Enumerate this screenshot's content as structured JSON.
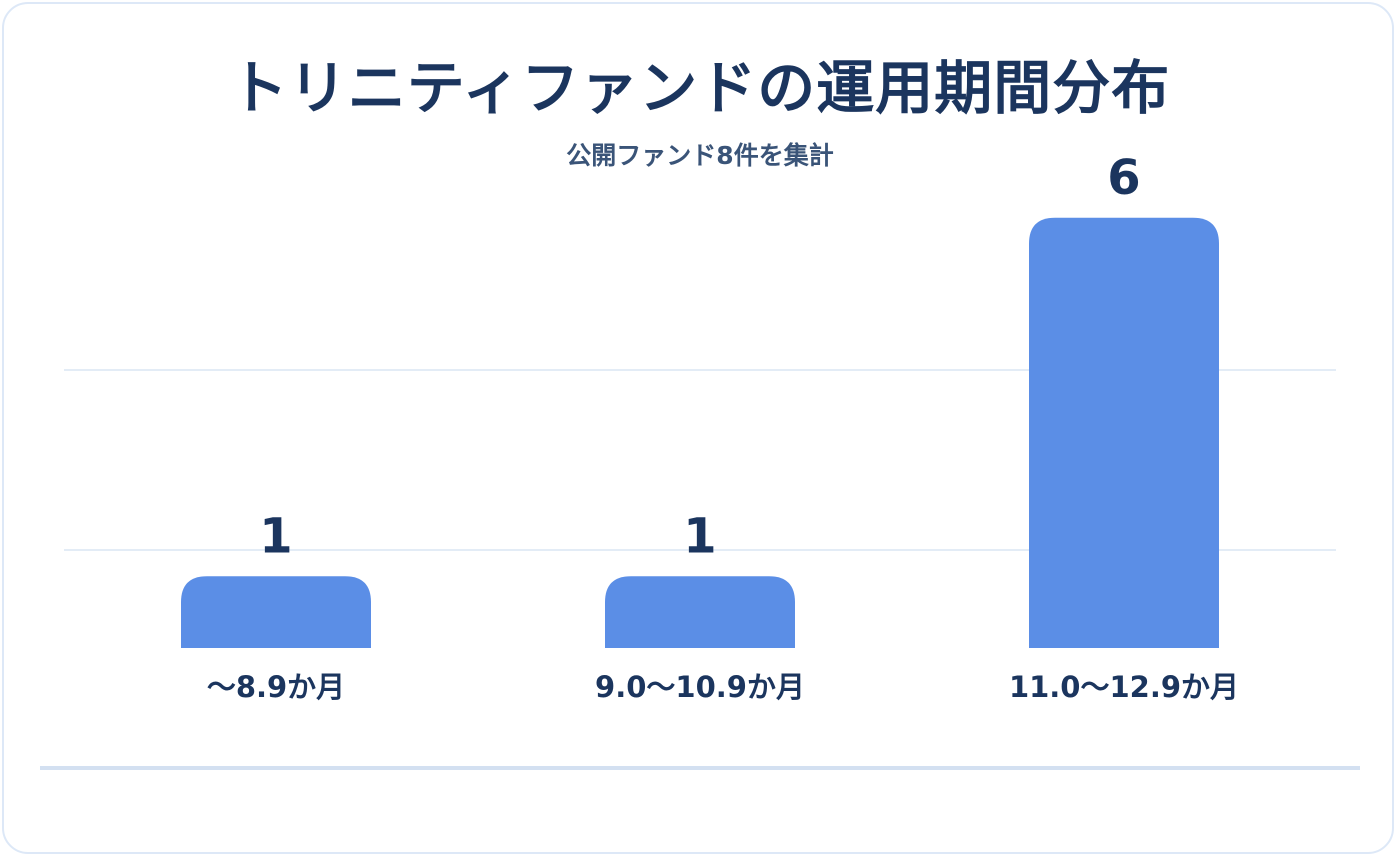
{
  "header": {
    "title": "トリニティファンドの運用期間分布",
    "subtitle": "公開ファンド8件を集計"
  },
  "colors": {
    "bar": "#5b8ee6",
    "text": "#1b355e",
    "subtitle": "#3a5478",
    "grid": "#e3ecf6",
    "baseline": "#d3e0f1",
    "border": "#dde8f7"
  },
  "chart_data": {
    "type": "bar",
    "categories": [
      "〜8.9か月",
      "9.0〜10.9か月",
      "11.0〜12.9か月"
    ],
    "values": [
      1,
      1,
      6
    ],
    "title": "トリニティファンドの運用期間分布",
    "subtitle": "公開ファンド8件を集計",
    "xlabel": "",
    "ylabel": "",
    "ylim": [
      0,
      7
    ],
    "grid": true,
    "legend": "none",
    "data_labels": true
  }
}
